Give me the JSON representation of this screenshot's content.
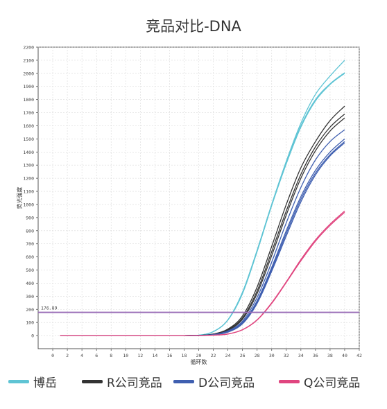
{
  "chart_data": {
    "type": "line",
    "title": "竞品对比-DNA",
    "xlabel": "循环数",
    "ylabel": "荧光强度",
    "xlim": [
      -2,
      42
    ],
    "ylim": [
      -100,
      2200
    ],
    "xticks": [
      0,
      2,
      4,
      6,
      8,
      10,
      12,
      14,
      16,
      18,
      20,
      22,
      24,
      26,
      28,
      30,
      32,
      34,
      36,
      38,
      40,
      42
    ],
    "yticks": [
      0,
      100,
      200,
      300,
      400,
      500,
      600,
      700,
      800,
      900,
      1000,
      1100,
      1200,
      1300,
      1400,
      1500,
      1600,
      1700,
      1800,
      1900,
      2000,
      2100,
      2200
    ],
    "grid": true,
    "threshold": {
      "value": 176.89,
      "label": "176.89",
      "color": "#9b6fb8"
    },
    "x": [
      1,
      18,
      20,
      22,
      24,
      26,
      28,
      30,
      32,
      34,
      36,
      38,
      40
    ],
    "series": [
      {
        "name": "博岳",
        "color": "#5fc4d4",
        "values": [
          0,
          0,
          3,
          30,
          120,
          330,
          650,
          1000,
          1330,
          1620,
          1840,
          1980,
          2100
        ]
      },
      {
        "name": "博岳",
        "color": "#5fc4d4",
        "values": [
          0,
          0,
          3,
          30,
          120,
          330,
          650,
          1000,
          1320,
          1600,
          1800,
          1920,
          2005
        ]
      },
      {
        "name": "博岳",
        "color": "#5fc4d4",
        "values": [
          0,
          0,
          3,
          30,
          118,
          320,
          640,
          990,
          1310,
          1590,
          1790,
          1915,
          2000
        ]
      },
      {
        "name": "R公司竞品",
        "color": "#333333",
        "values": [
          0,
          0,
          1,
          12,
          50,
          150,
          370,
          680,
          1000,
          1280,
          1480,
          1640,
          1750
        ]
      },
      {
        "name": "R公司竞品",
        "color": "#333333",
        "values": [
          0,
          0,
          1,
          10,
          45,
          135,
          340,
          640,
          950,
          1230,
          1440,
          1590,
          1690
        ]
      },
      {
        "name": "R公司竞品",
        "color": "#333333",
        "values": [
          0,
          0,
          1,
          10,
          40,
          125,
          320,
          610,
          920,
          1200,
          1410,
          1560,
          1660
        ]
      },
      {
        "name": "D公司竞品",
        "color": "#3f5fb0",
        "values": [
          0,
          0,
          1,
          8,
          35,
          110,
          290,
          560,
          860,
          1130,
          1340,
          1480,
          1570
        ]
      },
      {
        "name": "D公司竞品",
        "color": "#3f5fb0",
        "values": [
          0,
          0,
          1,
          7,
          30,
          100,
          265,
          520,
          800,
          1060,
          1260,
          1400,
          1500
        ]
      },
      {
        "name": "D公司竞品",
        "color": "#3f5fb0",
        "values": [
          0,
          0,
          1,
          7,
          28,
          95,
          255,
          505,
          780,
          1040,
          1240,
          1380,
          1480
        ]
      },
      {
        "name": "D公司竞品",
        "color": "#3f5fb0",
        "values": [
          0,
          0,
          1,
          6,
          26,
          90,
          245,
          490,
          760,
          1020,
          1225,
          1370,
          1470
        ]
      },
      {
        "name": "Q公司竞品",
        "color": "#e0457f",
        "values": [
          0,
          0,
          0,
          3,
          12,
          45,
          120,
          250,
          410,
          580,
          730,
          850,
          950
        ]
      },
      {
        "name": "Q公司竞品",
        "color": "#e0457f",
        "values": [
          0,
          0,
          0,
          3,
          12,
          44,
          118,
          245,
          405,
          570,
          720,
          840,
          940
        ]
      }
    ],
    "legend": [
      {
        "label": "博岳",
        "color": "#5fc4d4"
      },
      {
        "label": "R公司竞品",
        "color": "#333333"
      },
      {
        "label": "D公司竞品",
        "color": "#3f5fb0"
      },
      {
        "label": "Q公司竞品",
        "color": "#e0457f"
      }
    ],
    "legend_position": "bottom"
  }
}
